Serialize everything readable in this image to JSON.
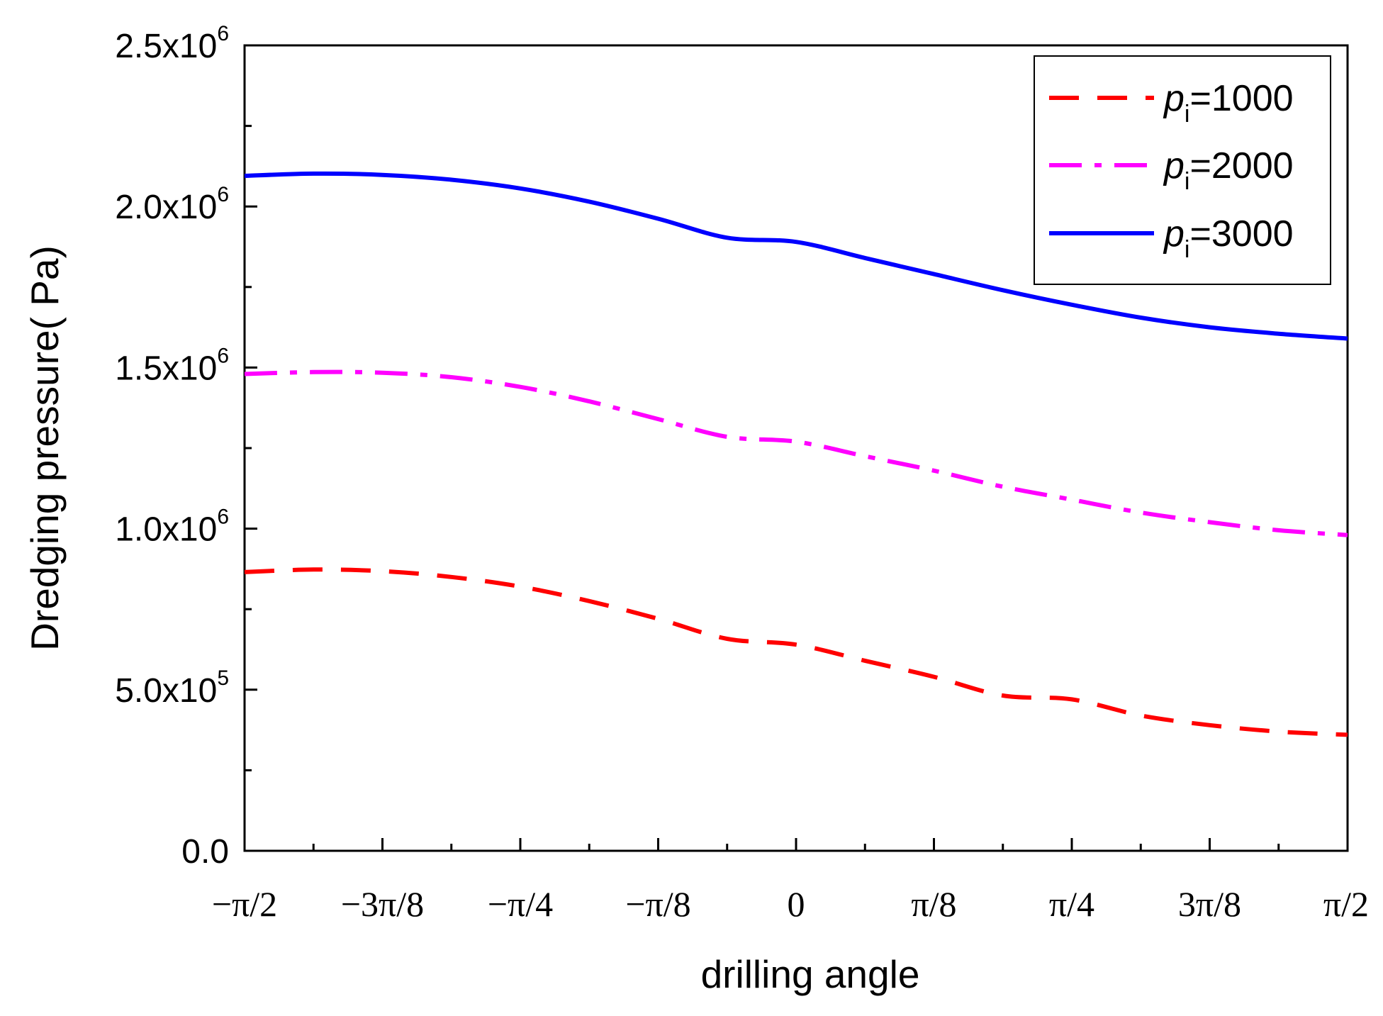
{
  "chart_data": {
    "type": "line",
    "title": "",
    "xlabel": "drilling angle",
    "ylabel": "Dredging pressure( Pa)",
    "xlim": [
      -1.5708,
      1.5708
    ],
    "ylim": [
      0,
      2500000
    ],
    "x_ticks": [
      {
        "value": -1.5708,
        "label": "−π/2"
      },
      {
        "value": -1.1781,
        "label": "−3π/8"
      },
      {
        "value": -0.7854,
        "label": "−π/4"
      },
      {
        "value": -0.3927,
        "label": "−π/8"
      },
      {
        "value": 0,
        "label": "0"
      },
      {
        "value": 0.3927,
        "label": "π/8"
      },
      {
        "value": 0.7854,
        "label": "π/4"
      },
      {
        "value": 1.1781,
        "label": "3π/8"
      },
      {
        "value": 1.5708,
        "label": "π/2"
      }
    ],
    "y_ticks": [
      {
        "value": 0,
        "mantissa": "0.0",
        "exponent": ""
      },
      {
        "value": 500000,
        "mantissa": "5.0x10",
        "exponent": "5"
      },
      {
        "value": 1000000,
        "mantissa": "1.0x10",
        "exponent": "6"
      },
      {
        "value": 1500000,
        "mantissa": "1.5x10",
        "exponent": "6"
      },
      {
        "value": 2000000,
        "mantissa": "2.0x10",
        "exponent": "6"
      },
      {
        "value": 2500000,
        "mantissa": "2.5x10",
        "exponent": "6"
      }
    ],
    "grid": false,
    "legend_position": "top-right",
    "x": [
      -1.5708,
      -1.3744,
      -1.1781,
      -0.9817,
      -0.7854,
      -0.589,
      -0.3927,
      -0.1963,
      0,
      0.1963,
      0.3927,
      0.589,
      0.7854,
      0.9817,
      1.1781,
      1.3744,
      1.5708
    ],
    "series": [
      {
        "name": "pi=1000",
        "legend_var": "p",
        "legend_sub": "i",
        "legend_rest": "=1000",
        "color": "#ff0000",
        "style": "dashed",
        "values": [
          865000,
          873000,
          868000,
          850000,
          820000,
          775000,
          720000,
          658000,
          640000,
          590000,
          540000,
          482000,
          470000,
          420000,
          390000,
          370000,
          360000
        ]
      },
      {
        "name": "pi=2000",
        "legend_var": "p",
        "legend_sub": "i",
        "legend_rest": "=2000",
        "color": "#ff00ff",
        "style": "dashdot",
        "values": [
          1480000,
          1486000,
          1484000,
          1470000,
          1440000,
          1395000,
          1340000,
          1285000,
          1270000,
          1225000,
          1180000,
          1130000,
          1090000,
          1050000,
          1020000,
          995000,
          980000
        ]
      },
      {
        "name": "pi=3000",
        "legend_var": "p",
        "legend_sub": "i",
        "legend_rest": "=3000",
        "color": "#0000ff",
        "style": "solid",
        "values": [
          2095000,
          2102000,
          2098000,
          2083000,
          2056000,
          2015000,
          1962000,
          1903000,
          1890000,
          1840000,
          1790000,
          1740000,
          1695000,
          1655000,
          1625000,
          1605000,
          1590000
        ]
      }
    ]
  }
}
